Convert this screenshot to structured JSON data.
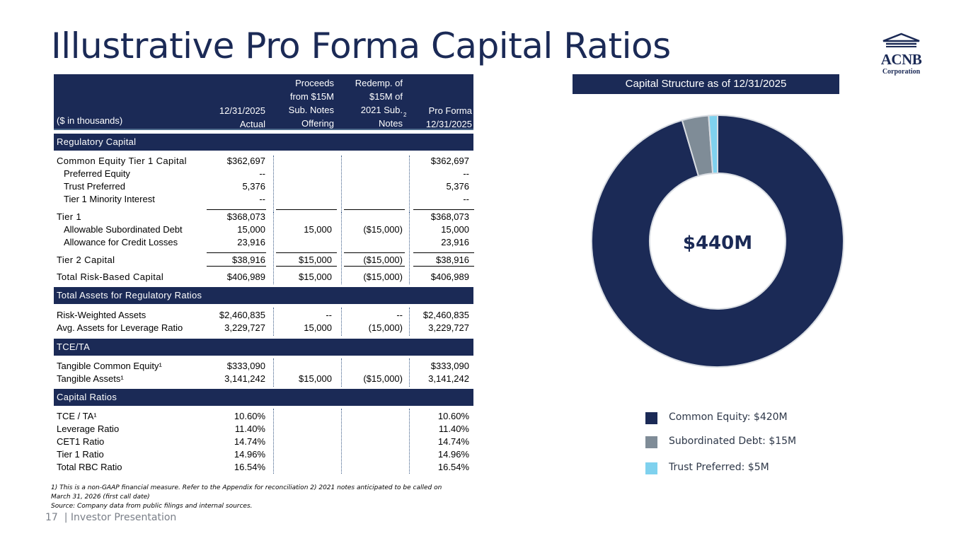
{
  "title": "Illustrative Pro Forma Capital Ratios",
  "logo": {
    "name": "ACNB",
    "sub": "Corporation"
  },
  "table": {
    "header": {
      "unit": "($ in thousands)",
      "col1": [
        "12/31/2025",
        "Actual"
      ],
      "col2": [
        "Proceeds",
        "from $15M",
        "Sub. Notes",
        "Offering"
      ],
      "col3": [
        "Redemp. of",
        "$15M of",
        "2021 Sub.",
        "Notes"
      ],
      "col3_sup": "2",
      "col4": [
        "Pro Forma",
        "12/31/2025"
      ]
    },
    "sections": {
      "regulatory": "Regulatory Capital",
      "total_assets": "Total Assets for Regulatory Ratios",
      "tce": "TCE/TA",
      "ratios": "Capital Ratios"
    },
    "rows": {
      "cet1": [
        "Common Equity Tier 1 Capital",
        "$362,697",
        "",
        "",
        "$362,697"
      ],
      "pref": [
        "Preferred Equity",
        "--",
        "",
        "",
        "--"
      ],
      "trust": [
        "Trust Preferred",
        "5,376",
        "",
        "",
        "5,376"
      ],
      "minority": [
        "Tier 1 Minority Interest",
        "--",
        "",
        "",
        "--"
      ],
      "tier1": [
        "Tier 1",
        "$368,073",
        "",
        "",
        "$368,073"
      ],
      "subdebt": [
        "Allowable Subordinated Debt",
        "15,000",
        "15,000",
        "($15,000)",
        "15,000"
      ],
      "acl": [
        "Allowance for Credit Losses",
        "23,916",
        "",
        "",
        "23,916"
      ],
      "tier2": [
        "Tier 2 Capital",
        "$38,916",
        "$15,000",
        "($15,000)",
        "$38,916"
      ],
      "trbc": [
        "Total Risk-Based Capital",
        "$406,989",
        "$15,000",
        "($15,000)",
        "$406,989"
      ],
      "rwa": [
        "Risk-Weighted Assets",
        "$2,460,835",
        "--",
        "--",
        "$2,460,835"
      ],
      "avg": [
        "Avg. Assets for Leverage Ratio",
        "3,229,727",
        "15,000",
        "(15,000)",
        "3,229,727"
      ],
      "tce": [
        "Tangible Common Equity¹",
        "$333,090",
        "",
        "",
        "$333,090"
      ],
      "ta": [
        "Tangible Assets¹",
        "3,141,242",
        "$15,000",
        "($15,000)",
        "3,141,242"
      ],
      "tceta": [
        "TCE / TA¹",
        "10.60%",
        "",
        "",
        "10.60%"
      ],
      "lev": [
        "Leverage Ratio",
        "11.40%",
        "",
        "",
        "11.40%"
      ],
      "cet1r": [
        "CET1 Ratio",
        "14.74%",
        "",
        "",
        "14.74%"
      ],
      "t1r": [
        "Tier 1 Ratio",
        "14.96%",
        "",
        "",
        "14.96%"
      ],
      "trbcr": [
        "Total RBC Ratio",
        "16.54%",
        "",
        "",
        "16.54%"
      ]
    }
  },
  "footnotes": [
    "1) This is a non-GAAP financial measure. Refer to the Appendix for reconciliation 2) 2021 notes anticipated to be called on",
    "March 31, 2026 (first call date)",
    "Source: Company data from public filings and internal sources."
  ],
  "page": {
    "number": "17",
    "label": "| Investor Presentation"
  },
  "chart_data": {
    "type": "pie",
    "title": "Capital Structure as of 12/31/2025",
    "center_label": "$440M",
    "slices": [
      {
        "name": "Common Equity",
        "value": 420,
        "color": "#1b2a56",
        "label": "Common Equity: $420M"
      },
      {
        "name": "Subordinated Debt",
        "value": 15,
        "color": "#7f8c97",
        "label": "Subordinated Debt: $15M"
      },
      {
        "name": "Trust Preferred",
        "value": 5,
        "color": "#7fd1ee",
        "label": "Trust Preferred: $5M"
      }
    ]
  }
}
